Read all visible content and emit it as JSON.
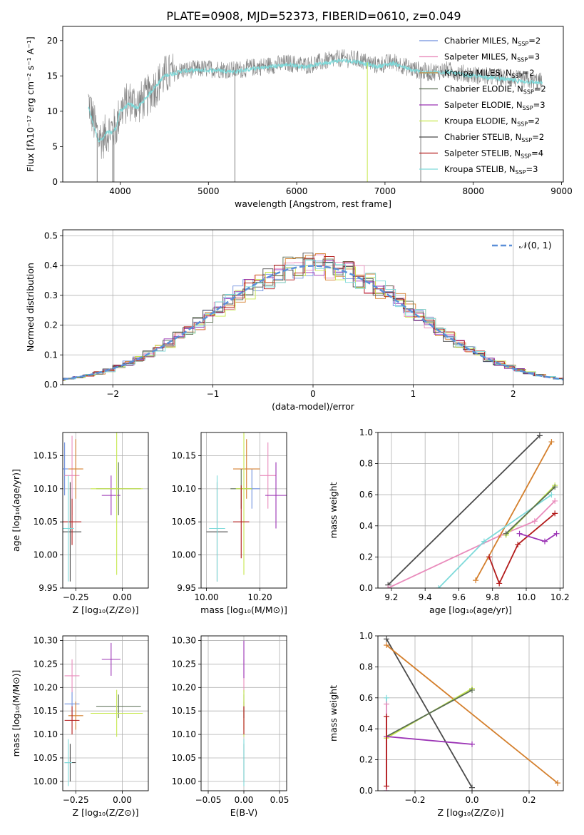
{
  "figure": {
    "title": "PLATE=0908, MJD=52373, FIBERID=0610, z=0.049"
  },
  "series_models": [
    {
      "name": "Chabrier MILES",
      "nssp": "2",
      "color": "#6f8fde"
    },
    {
      "name": "Salpeter MILES",
      "nssp": "3",
      "color": "#e98cbc"
    },
    {
      "name": "Kroupa MILES",
      "nssp": "2",
      "color": "#d47f2c"
    },
    {
      "name": "Chabrier ELODIE",
      "nssp": "2",
      "color": "#5a6e52"
    },
    {
      "name": "Salpeter ELODIE",
      "nssp": "3",
      "color": "#9b33b5"
    },
    {
      "name": "Kroupa ELODIE",
      "nssp": "2",
      "color": "#c7e84e"
    },
    {
      "name": "Chabrier STELIB",
      "nssp": "2",
      "color": "#4a4a4a"
    },
    {
      "name": "Salpeter STELIB",
      "nssp": "4",
      "color": "#b31b1b"
    },
    {
      "name": "Kroupa STELIB",
      "nssp": "3",
      "color": "#7fdada"
    }
  ],
  "chart_data": [
    {
      "id": "spectrum",
      "type": "line",
      "xlabel": "wavelength [Angstrom, rest frame]",
      "ylabel": "Flux [fλ10⁻¹⁷ erg cm⁻² s⁻¹ A⁻¹]",
      "xlim": [
        3350,
        9020
      ],
      "ylim": [
        0,
        22
      ],
      "xticks": [
        4000,
        5000,
        6000,
        7000,
        8000,
        9000
      ],
      "yticks": [
        0,
        5,
        10,
        15,
        20
      ],
      "observed_color": "#7f7f7f",
      "model_color": "#7fdada",
      "data_range": [
        3640,
        8780
      ],
      "observed_trace": [
        [
          3640,
          11.5
        ],
        [
          3700,
          8.5
        ],
        [
          3750,
          6.5
        ],
        [
          3800,
          6.0
        ],
        [
          3850,
          7.0
        ],
        [
          3900,
          7.5
        ],
        [
          3950,
          7.5
        ],
        [
          4000,
          10.0
        ],
        [
          4100,
          11.5
        ],
        [
          4200,
          11.0
        ],
        [
          4300,
          12.0
        ],
        [
          4400,
          13.5
        ],
        [
          4500,
          15.0
        ],
        [
          4700,
          15.8
        ],
        [
          4900,
          16.0
        ],
        [
          5100,
          16.0
        ],
        [
          5300,
          15.8
        ],
        [
          5500,
          16.2
        ],
        [
          5700,
          16.5
        ],
        [
          5900,
          16.8
        ],
        [
          6100,
          16.5
        ],
        [
          6300,
          17.0
        ],
        [
          6500,
          17.5
        ],
        [
          6700,
          17.3
        ],
        [
          6900,
          16.5
        ],
        [
          7100,
          17.0
        ],
        [
          7300,
          16.0
        ],
        [
          7500,
          15.5
        ],
        [
          7700,
          15.8
        ],
        [
          7900,
          15.3
        ],
        [
          8100,
          15.0
        ],
        [
          8300,
          14.8
        ],
        [
          8500,
          14.5
        ],
        [
          8780,
          14.2
        ]
      ],
      "model_trace": [
        [
          3640,
          10.5
        ],
        [
          3700,
          8.0
        ],
        [
          3750,
          6.0
        ],
        [
          3800,
          6.0
        ],
        [
          3850,
          7.0
        ],
        [
          3900,
          7.0
        ],
        [
          3950,
          7.5
        ],
        [
          4000,
          10.0
        ],
        [
          4100,
          11.0
        ],
        [
          4200,
          10.5
        ],
        [
          4300,
          12.0
        ],
        [
          4400,
          13.5
        ],
        [
          4500,
          15.0
        ],
        [
          4700,
          15.7
        ],
        [
          4900,
          15.8
        ],
        [
          5100,
          15.8
        ],
        [
          5300,
          15.6
        ],
        [
          5500,
          16.0
        ],
        [
          5700,
          16.3
        ],
        [
          5900,
          16.6
        ],
        [
          6100,
          16.3
        ],
        [
          6300,
          16.8
        ],
        [
          6500,
          17.2
        ],
        [
          6700,
          17.0
        ],
        [
          6900,
          16.3
        ],
        [
          7100,
          16.8
        ],
        [
          7300,
          15.8
        ],
        [
          7500,
          15.4
        ],
        [
          7700,
          15.6
        ],
        [
          7900,
          15.1
        ],
        [
          8100,
          14.9
        ],
        [
          8300,
          14.6
        ],
        [
          8500,
          14.3
        ],
        [
          8780,
          14.0
        ]
      ],
      "legend_position": "upper-right"
    },
    {
      "id": "residuals",
      "type": "bar",
      "xlabel": "(data-model)/error",
      "ylabel": "Normed distribution",
      "xlim": [
        -2.5,
        2.5
      ],
      "ylim": [
        0,
        0.52
      ],
      "xticks": [
        -2,
        -1,
        0,
        1,
        2
      ],
      "yticks": [
        0.0,
        0.1,
        0.2,
        0.3,
        0.4,
        0.5
      ],
      "reference": {
        "label": "𝒩(0, 1)",
        "color": "#5b8fd8",
        "mu": 0,
        "sigma": 1
      },
      "legend_position": "upper-right",
      "grid": true
    },
    {
      "id": "age-vs-Z",
      "type": "scatter",
      "xlabel": "Z [log₁₀(Z/Z⊙)]",
      "ylabel": "age  [log₁₀(age/yr)]",
      "xlim": [
        -0.32,
        0.14
      ],
      "ylim": [
        9.95,
        10.185
      ],
      "xticks": [
        -0.25,
        0.0
      ],
      "yticks": [
        9.95,
        10.0,
        10.05,
        10.1,
        10.15
      ],
      "grid": true,
      "points": [
        {
          "series": 0,
          "x": -0.31,
          "y": 10.13,
          "xerr": 0.02,
          "yerr": 0.04
        },
        {
          "series": 1,
          "x": -0.27,
          "y": 10.12,
          "xerr": 0.04,
          "yerr": 0.06
        },
        {
          "series": 2,
          "x": -0.25,
          "y": 10.13,
          "xerr": 0.04,
          "yerr": 0.045
        },
        {
          "series": 3,
          "x": -0.02,
          "y": 10.1,
          "xerr": 0.12,
          "yerr": 0.04
        },
        {
          "series": 4,
          "x": -0.06,
          "y": 10.09,
          "xerr": 0.05,
          "yerr": 0.03
        },
        {
          "series": 5,
          "x": -0.03,
          "y": 10.1,
          "xerr": 0.14,
          "yerr": 0.13
        },
        {
          "series": 6,
          "x": -0.28,
          "y": 10.035,
          "xerr": 0.06,
          "yerr": 0.075
        },
        {
          "series": 7,
          "x": -0.27,
          "y": 10.05,
          "xerr": 0.05,
          "yerr": 0.035
        },
        {
          "series": 8,
          "x": -0.29,
          "y": 10.04,
          "xerr": 0.03,
          "yerr": 0.08
        }
      ]
    },
    {
      "id": "age-vs-mass",
      "type": "scatter",
      "xlabel": "mass [log₁₀(M/M⊙)]",
      "ylabel": "",
      "xlim": [
        9.98,
        10.3
      ],
      "ylim": [
        9.95,
        10.185
      ],
      "xticks": [
        10.0,
        10.2
      ],
      "yticks": [
        9.95,
        10.0,
        10.05,
        10.1,
        10.15
      ],
      "grid": true,
      "points": [
        {
          "series": 0,
          "x": 10.17,
          "y": 10.1,
          "xerr": 0.03,
          "yerr": 0.03
        },
        {
          "series": 1,
          "x": 10.23,
          "y": 10.12,
          "xerr": 0.03,
          "yerr": 0.05
        },
        {
          "series": 2,
          "x": 10.15,
          "y": 10.13,
          "xerr": 0.05,
          "yerr": 0.045
        },
        {
          "series": 3,
          "x": 10.13,
          "y": 10.1,
          "xerr": 0.04,
          "yerr": 0.03
        },
        {
          "series": 4,
          "x": 10.26,
          "y": 10.09,
          "xerr": 0.04,
          "yerr": 0.05
        },
        {
          "series": 5,
          "x": 10.14,
          "y": 10.1,
          "xerr": 0.03,
          "yerr": 0.13
        },
        {
          "series": 6,
          "x": 10.04,
          "y": 10.035,
          "xerr": 0.04,
          "yerr": 0.075
        },
        {
          "series": 7,
          "x": 10.13,
          "y": 10.05,
          "xerr": 0.03,
          "yerr": 0.055
        },
        {
          "series": 8,
          "x": 10.04,
          "y": 10.04,
          "xerr": 0.03,
          "yerr": 0.08
        }
      ]
    },
    {
      "id": "weight-vs-age",
      "type": "line",
      "xlabel": "age  [log₁₀(age/yr)]",
      "ylabel": "mass weight",
      "xlim": [
        9.12,
        10.22
      ],
      "ylim": [
        0.0,
        1.0
      ],
      "xticks": [
        9.2,
        9.4,
        9.6,
        9.8,
        10.0,
        10.2
      ],
      "yticks": [
        0.0,
        0.2,
        0.4,
        0.6,
        0.8,
        1.0
      ],
      "grid": true,
      "lines": [
        {
          "series": 6,
          "x": [
            9.18,
            10.08
          ],
          "y": [
            0.02,
            0.98
          ]
        },
        {
          "series": 1,
          "x": [
            9.18,
            9.85,
            10.05,
            10.17
          ],
          "y": [
            0.0,
            0.34,
            0.43,
            0.56
          ]
        },
        {
          "series": 2,
          "x": [
            9.7,
            10.15
          ],
          "y": [
            0.05,
            0.94
          ]
        },
        {
          "series": 8,
          "x": [
            9.48,
            9.75,
            10.15
          ],
          "y": [
            0.0,
            0.3,
            0.6
          ]
        },
        {
          "series": 5,
          "x": [
            9.88,
            10.17
          ],
          "y": [
            0.34,
            0.66
          ]
        },
        {
          "series": 3,
          "x": [
            9.88,
            10.17
          ],
          "y": [
            0.35,
            0.65
          ]
        },
        {
          "series": 7,
          "x": [
            9.78,
            9.84,
            9.95,
            10.17
          ],
          "y": [
            0.2,
            0.03,
            0.28,
            0.48
          ]
        },
        {
          "series": 4,
          "x": [
            9.96,
            10.11,
            10.18
          ],
          "y": [
            0.35,
            0.3,
            0.35
          ]
        }
      ]
    },
    {
      "id": "mass-vs-Z",
      "type": "scatter",
      "xlabel": "Z [log₁₀(Z/Z⊙)]",
      "ylabel": "mass [log₁₀(M/M⊙)]",
      "xlim": [
        -0.32,
        0.14
      ],
      "ylim": [
        9.98,
        10.31
      ],
      "xticks": [
        -0.25,
        0.0
      ],
      "yticks": [
        10.0,
        10.05,
        10.1,
        10.15,
        10.2,
        10.25,
        10.3
      ],
      "grid": true,
      "points": [
        {
          "series": 0,
          "x": -0.27,
          "y": 10.165,
          "xerr": 0.04,
          "yerr": 0.03
        },
        {
          "series": 1,
          "x": -0.27,
          "y": 10.225,
          "xerr": 0.04,
          "yerr": 0.035
        },
        {
          "series": 2,
          "x": -0.25,
          "y": 10.14,
          "xerr": 0.04,
          "yerr": 0.03
        },
        {
          "series": 3,
          "x": -0.02,
          "y": 10.16,
          "xerr": 0.12,
          "yerr": 0.025
        },
        {
          "series": 4,
          "x": -0.06,
          "y": 10.26,
          "xerr": 0.05,
          "yerr": 0.035
        },
        {
          "series": 5,
          "x": -0.03,
          "y": 10.145,
          "xerr": 0.14,
          "yerr": 0.05
        },
        {
          "series": 6,
          "x": -0.28,
          "y": 10.04,
          "xerr": 0.03,
          "yerr": 0.04
        },
        {
          "series": 7,
          "x": -0.27,
          "y": 10.13,
          "xerr": 0.04,
          "yerr": 0.03
        },
        {
          "series": 8,
          "x": -0.29,
          "y": 10.04,
          "xerr": 0.02,
          "yerr": 0.05
        }
      ]
    },
    {
      "id": "mass-vs-EBV",
      "type": "scatter",
      "xlabel": "E(B-V)",
      "ylabel": "",
      "xlim": [
        -0.06,
        0.06
      ],
      "ylim": [
        9.98,
        10.31
      ],
      "xticks": [
        -0.05,
        0.0,
        0.05
      ],
      "yticks": [
        10.0,
        10.05,
        10.1,
        10.15,
        10.2,
        10.25,
        10.3
      ],
      "grid": true,
      "points": [
        {
          "series": 0,
          "x": 0,
          "y": 10.165,
          "xerr": 0,
          "yerr": 0.03
        },
        {
          "series": 1,
          "x": 0,
          "y": 10.225,
          "xerr": 0,
          "yerr": 0.035
        },
        {
          "series": 2,
          "x": 0,
          "y": 10.14,
          "xerr": 0,
          "yerr": 0.03
        },
        {
          "series": 3,
          "x": 0,
          "y": 10.16,
          "xerr": 0,
          "yerr": 0.025
        },
        {
          "series": 4,
          "x": 0,
          "y": 10.26,
          "xerr": 0,
          "yerr": 0.04
        },
        {
          "series": 5,
          "x": 0,
          "y": 10.145,
          "xerr": 0,
          "yerr": 0.05
        },
        {
          "series": 6,
          "x": 0,
          "y": 10.04,
          "xerr": 0,
          "yerr": 0.04
        },
        {
          "series": 7,
          "x": 0,
          "y": 10.13,
          "xerr": 0,
          "yerr": 0.03
        },
        {
          "series": 8,
          "x": 0,
          "y": 10.04,
          "xerr": 0,
          "yerr": 0.05
        }
      ]
    },
    {
      "id": "weight-vs-Z",
      "type": "line",
      "xlabel": "Z [log₁₀(Z/Z⊙)]",
      "ylabel": "mass weight",
      "xlim": [
        -0.33,
        0.32
      ],
      "ylim": [
        0.0,
        1.0
      ],
      "xticks": [
        -0.2,
        0.0,
        0.2
      ],
      "yticks": [
        0.0,
        0.2,
        0.4,
        0.6,
        0.8,
        1.0
      ],
      "grid": true,
      "lines": [
        {
          "series": 6,
          "x": [
            -0.3,
            0.0
          ],
          "y": [
            0.98,
            0.02
          ]
        },
        {
          "series": 2,
          "x": [
            -0.3,
            0.3
          ],
          "y": [
            0.94,
            0.05
          ]
        },
        {
          "series": 5,
          "x": [
            -0.3,
            0.0
          ],
          "y": [
            0.34,
            0.66
          ]
        },
        {
          "series": 3,
          "x": [
            -0.3,
            0.0
          ],
          "y": [
            0.35,
            0.65
          ]
        },
        {
          "series": 4,
          "x": [
            -0.3,
            0.0
          ],
          "y": [
            0.35,
            0.3
          ]
        },
        {
          "series": 8,
          "x": [
            -0.3,
            -0.3
          ],
          "y": [
            0.0,
            0.6
          ]
        },
        {
          "series": 1,
          "x": [
            -0.3,
            -0.3
          ],
          "y": [
            0.0,
            0.56
          ]
        },
        {
          "series": 7,
          "x": [
            -0.3,
            -0.3
          ],
          "y": [
            0.03,
            0.48
          ]
        }
      ]
    }
  ]
}
